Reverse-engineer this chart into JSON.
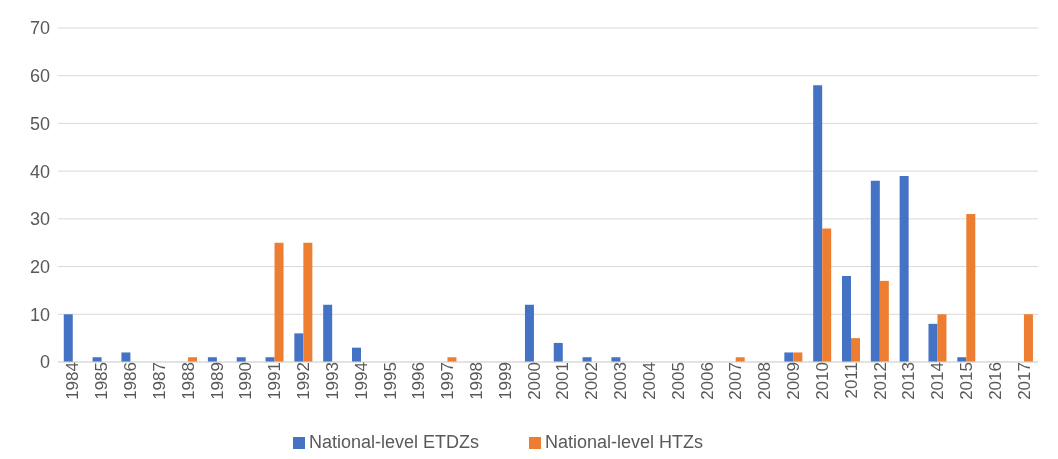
{
  "chart_data": {
    "type": "bar",
    "categories": [
      "1984",
      "1985",
      "1986",
      "1987",
      "1988",
      "1989",
      "1990",
      "1991",
      "1992",
      "1993",
      "1994",
      "1995",
      "1996",
      "1997",
      "1998",
      "1999",
      "2000",
      "2001",
      "2002",
      "2003",
      "2004",
      "2005",
      "2006",
      "2007",
      "2008",
      "2009",
      "2010",
      "2011",
      "2012",
      "2013",
      "2014",
      "2015",
      "2016",
      "2017"
    ],
    "series": [
      {
        "name": "National-level ETDZs",
        "color": "#4472c4",
        "values": [
          10,
          1,
          2,
          0,
          0,
          1,
          1,
          1,
          6,
          12,
          3,
          0,
          0,
          0,
          0,
          0,
          12,
          4,
          1,
          1,
          0,
          0,
          0,
          0,
          0,
          2,
          58,
          18,
          38,
          39,
          8,
          1,
          0,
          0
        ]
      },
      {
        "name": "National-level HTZs",
        "color": "#ed7d31",
        "values": [
          0,
          0,
          0,
          0,
          1,
          0,
          0,
          25,
          25,
          0,
          0,
          0,
          0,
          1,
          0,
          0,
          0,
          0,
          0,
          0,
          0,
          0,
          0,
          1,
          0,
          2,
          28,
          5,
          17,
          0,
          10,
          31,
          0,
          10
        ]
      }
    ],
    "ylim": [
      0,
      70
    ],
    "yticks": [
      0,
      10,
      20,
      30,
      40,
      50,
      60,
      70
    ],
    "grid": "y",
    "legend": "bottom"
  }
}
